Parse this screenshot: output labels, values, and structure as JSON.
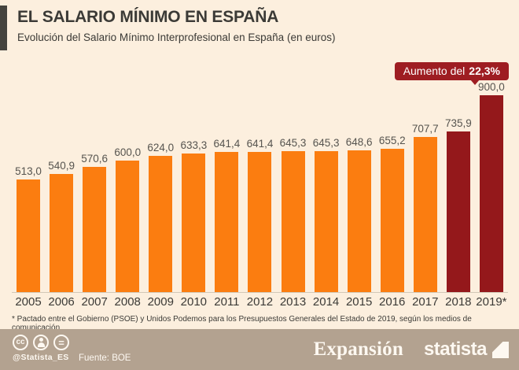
{
  "header": {
    "title": "EL SALARIO MÍNIMO EN ESPAÑA",
    "subtitle": "Evolución del Salario Mínimo Interprofesional en España (en euros)"
  },
  "annotation": {
    "prefix": "Aumento del",
    "value": "22,3%"
  },
  "chart_data": {
    "type": "bar",
    "title": "EL SALARIO MÍNIMO EN ESPAÑA",
    "subtitle": "Evolución del Salario Mínimo Interprofesional en España (en euros)",
    "categories": [
      "2005",
      "2006",
      "2007",
      "2008",
      "2009",
      "2010",
      "2011",
      "2012",
      "2013",
      "2014",
      "2015",
      "2016",
      "2017",
      "2018",
      "2019*"
    ],
    "values": [
      513.0,
      540.9,
      570.6,
      600.0,
      624.0,
      633.3,
      641.4,
      641.4,
      645.3,
      645.3,
      648.6,
      655.2,
      707.7,
      735.9,
      900.0
    ],
    "value_labels": [
      "513,0",
      "540,9",
      "570,6",
      "600,0",
      "624,0",
      "633,3",
      "641,4",
      "641,4",
      "645,3",
      "645,3",
      "648,6",
      "655,2",
      "707,7",
      "735,9",
      "900,0"
    ],
    "unit": "euros",
    "ylim": [
      0,
      900
    ],
    "grid": false,
    "legend": false,
    "bar_color_default": "#fb7d10",
    "bar_color_highlight": "#94181b",
    "highlight_categories": [
      "2018",
      "2019*"
    ],
    "annotation": "Aumento del 22,3%"
  },
  "footnote": "* Pactado entre el Gobierno (PSOE) y Unidos Podemos para los Presupuestos Generales del Estado de 2019, según los medios de comunicación",
  "footer": {
    "license": {
      "cc_text": "cc",
      "nd_text": "="
    },
    "handle": "@Statista_ES",
    "source": "Fuente: BOE",
    "brand_left": "Expansión",
    "brand_right": "statista"
  },
  "colors": {
    "background": "#fcefde",
    "accent_bar": "#45443f",
    "text": "#3b3a36",
    "badge": "#9e1d22",
    "bar_orange": "#fb7d10",
    "bar_dark_red": "#94181b",
    "footer_background": "#b3a290",
    "footer_text": "#fdf8f1"
  }
}
